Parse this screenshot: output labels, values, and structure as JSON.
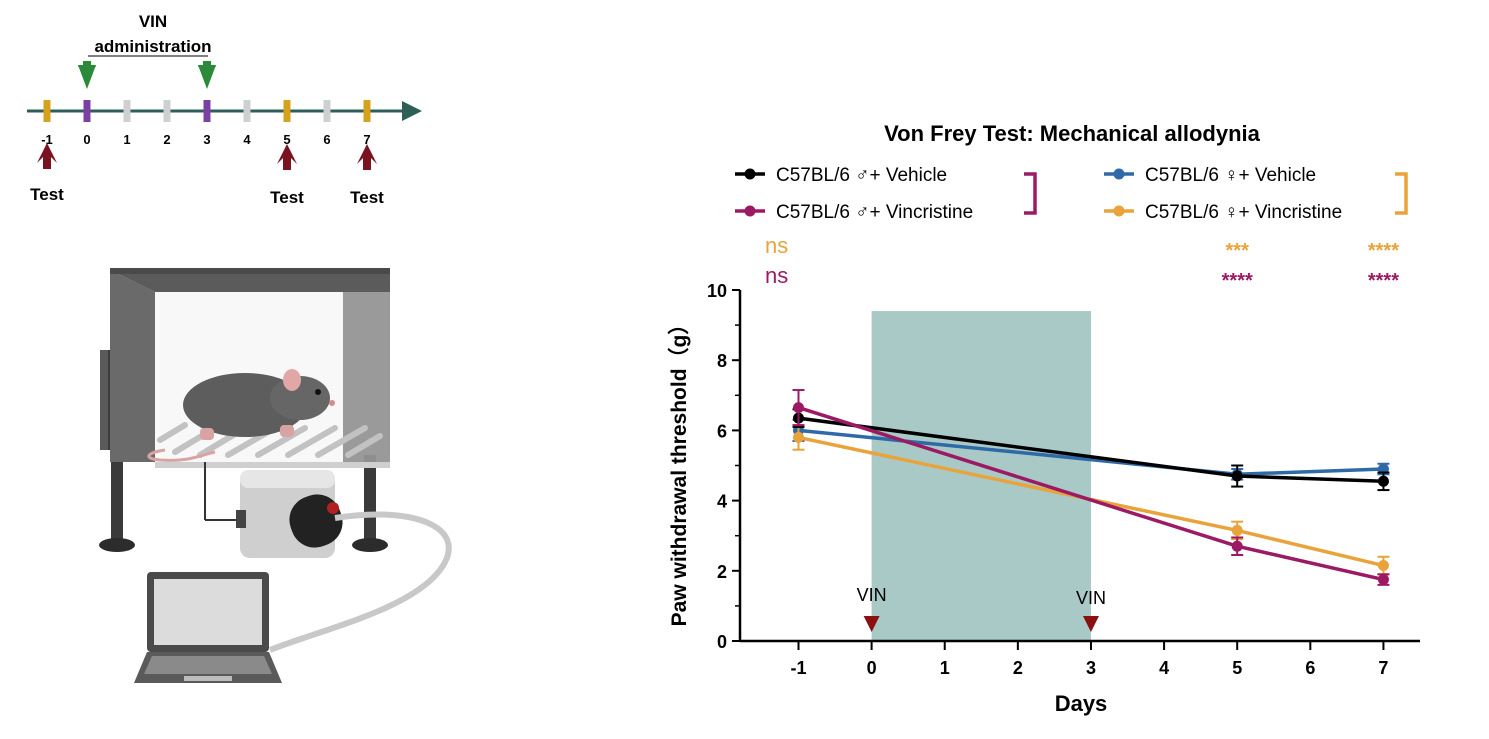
{
  "timeline": {
    "header_line1": "VIN",
    "header_line2": "administration",
    "days": [
      "-1",
      "0",
      "1",
      "2",
      "3",
      "4",
      "5",
      "6",
      "7"
    ],
    "test_days": [
      "-1",
      "5",
      "7"
    ],
    "vin_days": [
      "0",
      "3"
    ],
    "test_label": "Test",
    "colors": {
      "test_tick": "#d6a21e",
      "vin_tick": "#7c3fa3",
      "other_tick": "#cfcfcf",
      "axis": "#2e5e58",
      "vin_arrow": "#2a8a3a",
      "test_arrow": "#7a1220"
    }
  },
  "illustration": {
    "description_icons": [
      "von-frey-chamber-icon",
      "mouse-icon",
      "mesh-floor-icon",
      "von-frey-device-icon",
      "laptop-icon"
    ]
  },
  "chart_data": {
    "type": "line",
    "title": "Von Frey Test: Mechanical allodynia",
    "xlabel": "Days",
    "ylabel": "Paw withdrawal threshold（g）",
    "x_ticks": [
      "-1",
      "0",
      "1",
      "2",
      "3",
      "4",
      "5",
      "6",
      "7"
    ],
    "y_ticks": [
      "0",
      "2",
      "4",
      "6",
      "8",
      "10"
    ],
    "xlim": [
      -1.8,
      7.5
    ],
    "ylim": [
      0,
      10
    ],
    "shaded_region": {
      "x": [
        0,
        3
      ],
      "y": [
        0,
        9.4
      ],
      "color": "#a9c9c6"
    },
    "vin_markers": [
      {
        "x": 0,
        "label": "VIN"
      },
      {
        "x": 3,
        "label": "VIN"
      }
    ],
    "series": [
      {
        "name": "C57BL/6 ♂+ Vehicle",
        "color": "#000000",
        "x": [
          -1,
          5,
          7
        ],
        "y": [
          6.35,
          4.7,
          4.55
        ],
        "err": [
          0.25,
          0.3,
          0.25
        ]
      },
      {
        "name": "C57BL/6 ♂+ Vincristine",
        "color": "#9c1a63",
        "x": [
          -1,
          5,
          7
        ],
        "y": [
          6.65,
          2.7,
          1.75
        ],
        "err": [
          0.5,
          0.25,
          0.15
        ]
      },
      {
        "name": "C57BL/6 ♀+ Vehicle",
        "color": "#2e6aa8",
        "x": [
          -1,
          5,
          7
        ],
        "y": [
          6.0,
          4.75,
          4.9
        ],
        "err": [
          0.3,
          0.15,
          0.15
        ]
      },
      {
        "name": "C57BL/6 ♀+ Vincristine",
        "color": "#e8a33a",
        "x": [
          -1,
          5,
          7
        ],
        "y": [
          5.8,
          3.15,
          2.15
        ],
        "err": [
          0.35,
          0.25,
          0.25
        ]
      }
    ],
    "significance": {
      "female_row": {
        "color": "#e8a33a",
        "labels": [
          {
            "x": -1,
            "text": "ns"
          },
          {
            "x": 5,
            "text": "***"
          },
          {
            "x": 7,
            "text": "****"
          }
        ]
      },
      "male_row": {
        "color": "#9c1a63",
        "labels": [
          {
            "x": -1,
            "text": "ns"
          },
          {
            "x": 5,
            "text": "****"
          },
          {
            "x": 7,
            "text": "****"
          }
        ]
      }
    },
    "legend_placement": "top"
  }
}
